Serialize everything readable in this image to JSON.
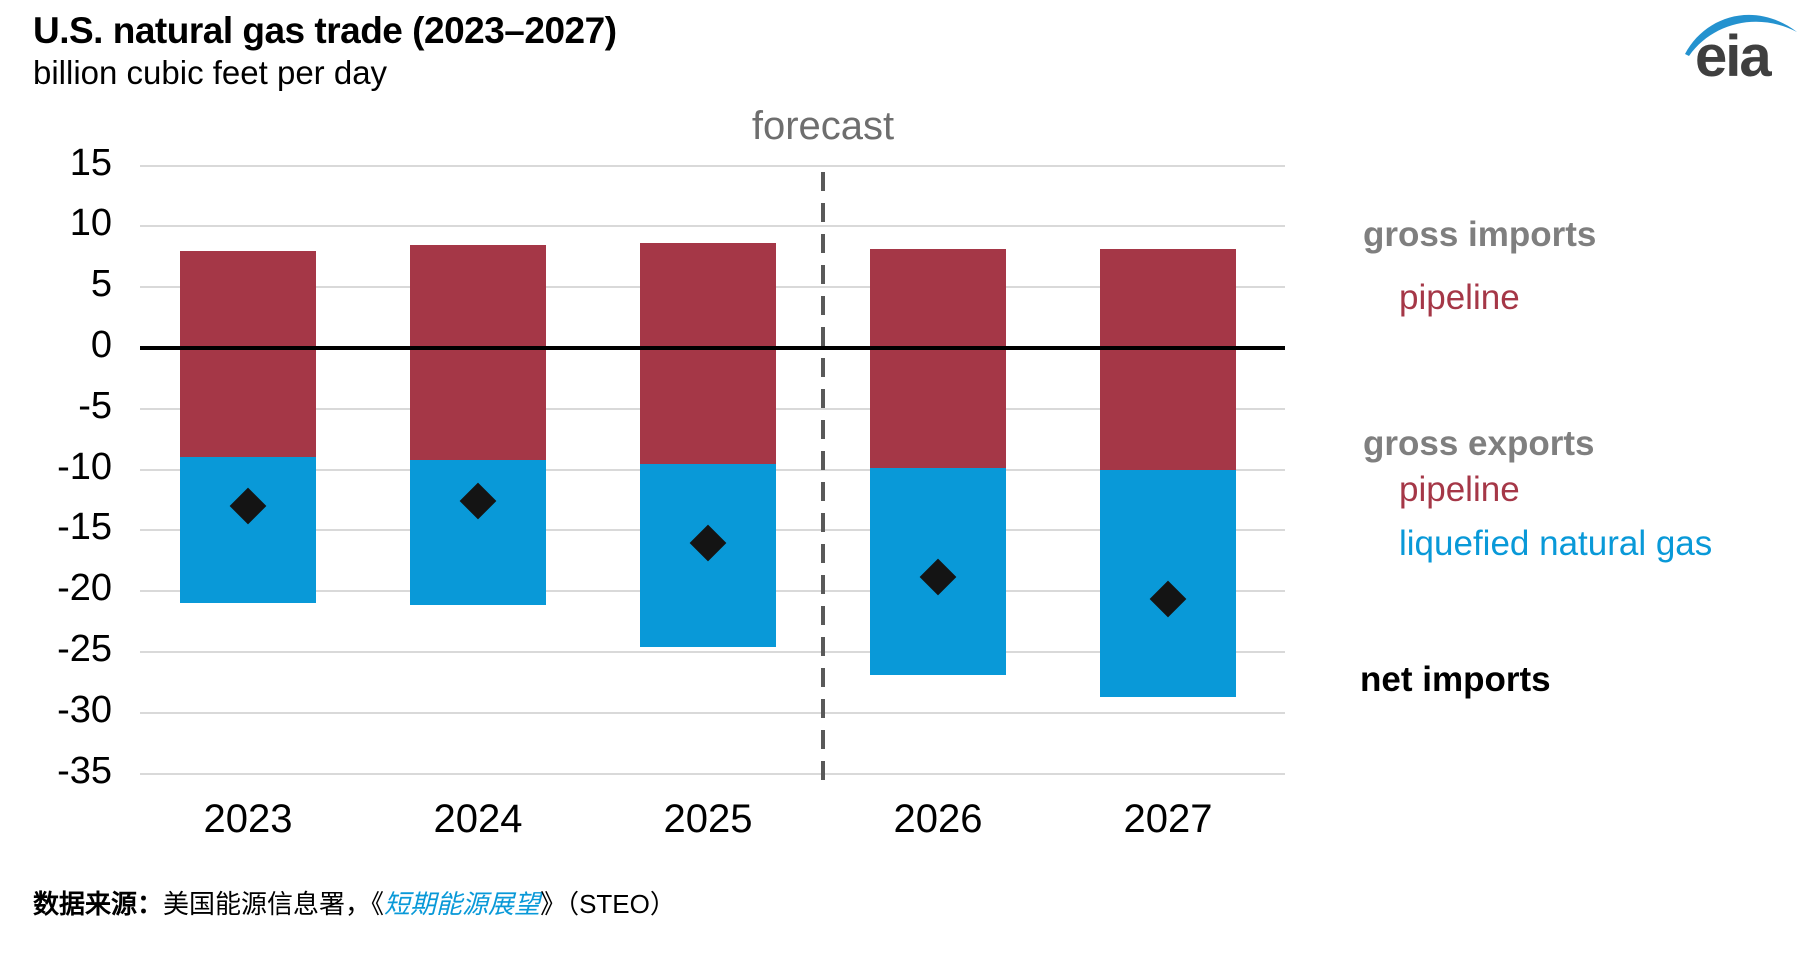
{
  "header": {
    "title": "U.S. natural gas trade (2023–2027)",
    "subtitle": "billion cubic feet per day"
  },
  "logo": {
    "text": "eia",
    "swoosh_color": "#2492cf",
    "text_color": "#3f3f3f"
  },
  "chart_data": {
    "type": "bar",
    "stacked": true,
    "title": "U.S. natural gas trade (2023–2027)",
    "ylabel": "billion cubic feet per day",
    "categories": [
      "2023",
      "2024",
      "2025",
      "2026",
      "2027"
    ],
    "series": [
      {
        "name": "gross imports pipeline",
        "color": "#a53747",
        "values": [
          8.0,
          8.5,
          8.6,
          8.1,
          8.1
        ]
      },
      {
        "name": "gross exports pipeline",
        "color": "#a53747",
        "values": [
          -9.0,
          -9.2,
          -9.5,
          -9.9,
          -10.0
        ]
      },
      {
        "name": "gross exports liquefied natural gas",
        "color": "#0999d8",
        "values": [
          -12.0,
          -11.9,
          -15.1,
          -17.0,
          -18.7
        ]
      }
    ],
    "markers": {
      "name": "net imports",
      "shape": "diamond",
      "color": "#141414",
      "values": [
        -13.0,
        -12.6,
        -16.0,
        -18.8,
        -20.6
      ]
    },
    "ylim": [
      -35,
      15
    ],
    "yticks": [
      15,
      10,
      5,
      0,
      -5,
      -10,
      -15,
      -20,
      -25,
      -30,
      -35
    ],
    "grid": true,
    "zero_line": true,
    "forecast": {
      "label": "forecast",
      "between": [
        "2025",
        "2026"
      ]
    },
    "gridline_color": "#d9d9d9",
    "zero_line_color": "#000000",
    "forecast_line_color": "#595959",
    "forecast_label_color": "#6e6e6e"
  },
  "legend": {
    "gross_imports": "gross imports",
    "imports_pipeline": "pipeline",
    "gross_exports": "gross exports",
    "exports_pipeline": "pipeline",
    "exports_lng": "liquefied natural gas",
    "net_imports": "net imports",
    "gray": "#7f7f7f",
    "red": "#a53747",
    "blue": "#0999d8",
    "black": "#000000"
  },
  "footer": {
    "source_label": "数据来源：",
    "source_text": "美国能源信息署，",
    "publication_prefix": "《",
    "publication": "短期能源展望",
    "publication_suffix": "》",
    "steo": "（STEO）"
  }
}
